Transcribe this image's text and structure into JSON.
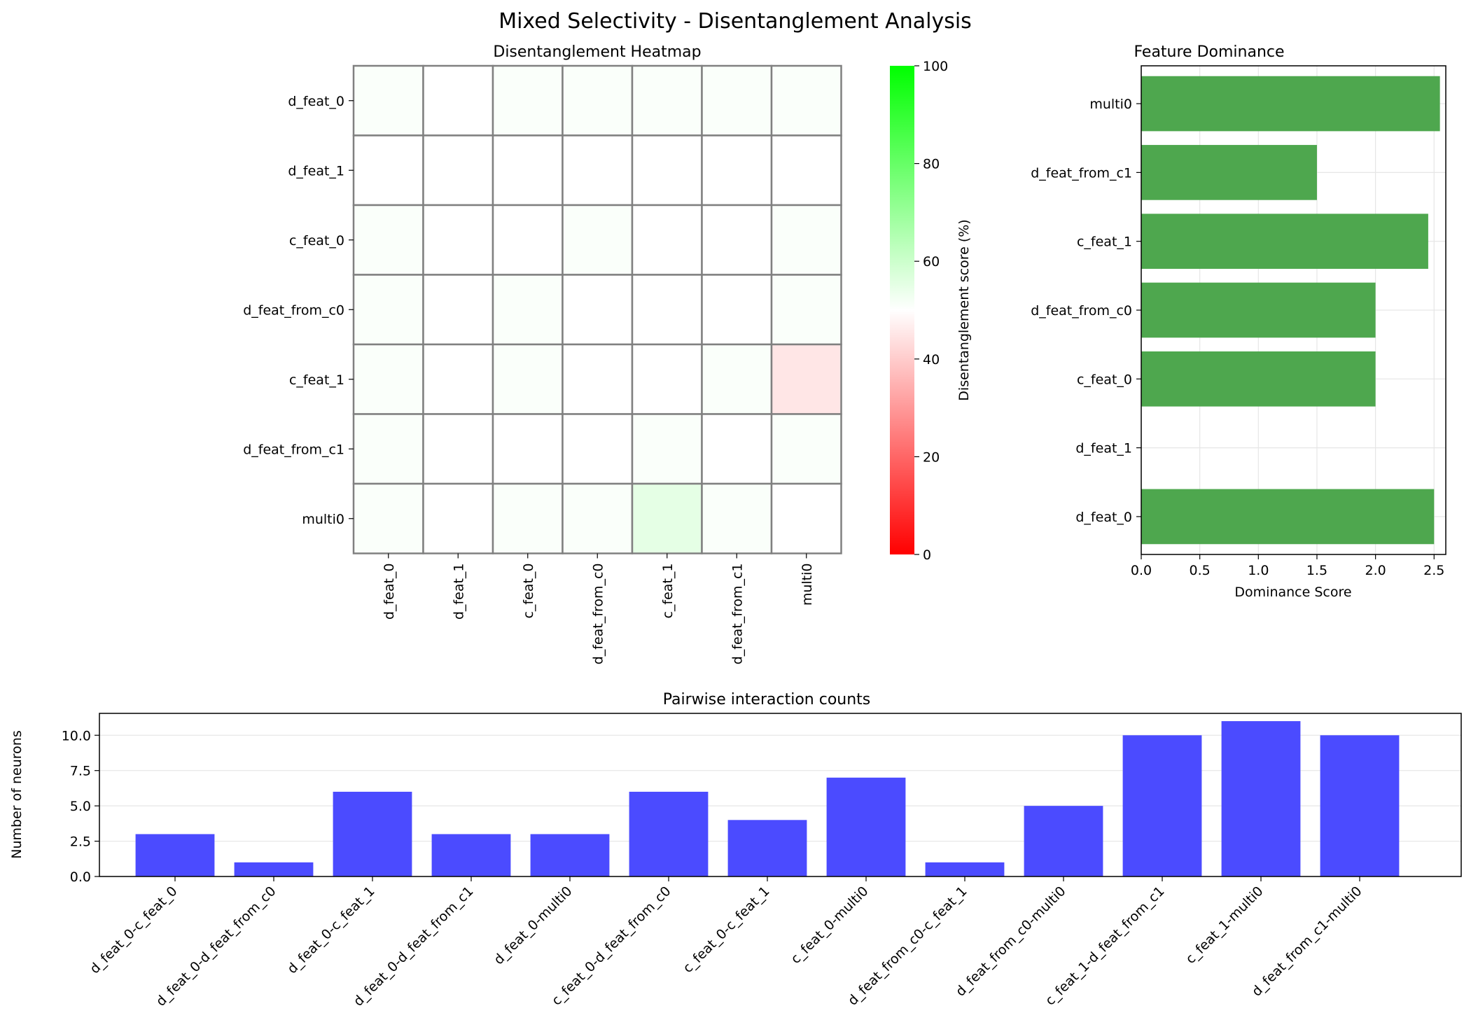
{
  "figure": {
    "title": "Mixed Selectivity - Disentanglement Analysis"
  },
  "colors": {
    "bar_green": "#4ea74e",
    "bar_blue": "#4b4bff",
    "grid": "#e6e6e6",
    "cell_border": "#808080",
    "cmap_low": "#ff0000",
    "cmap_mid": "#ffffff",
    "cmap_high": "#00ff00"
  },
  "chart_data": [
    {
      "type": "heatmap",
      "title": "Disentanglement Heatmap",
      "rows": [
        "d_feat_0",
        "d_feat_1",
        "c_feat_0",
        "d_feat_from_c0",
        "c_feat_1",
        "d_feat_from_c1",
        "multi0"
      ],
      "cols": [
        "d_feat_0",
        "d_feat_1",
        "c_feat_0",
        "d_feat_from_c0",
        "c_feat_1",
        "d_feat_from_c1",
        "multi0"
      ],
      "values": [
        [
          51,
          50,
          51,
          51,
          51,
          51,
          51
        ],
        [
          50,
          50,
          50,
          50,
          50,
          50,
          50
        ],
        [
          51,
          50,
          50,
          51,
          50,
          50,
          51
        ],
        [
          51,
          50,
          51,
          50,
          50,
          50,
          51
        ],
        [
          51,
          50,
          51,
          50,
          50,
          51,
          45
        ],
        [
          51,
          50,
          50,
          50,
          51,
          50,
          51
        ],
        [
          51,
          50,
          51,
          51,
          55,
          51,
          50
        ]
      ],
      "colorbar": {
        "label": "Disentanglement score (%)",
        "range": [
          0,
          100
        ],
        "ticks": [
          0,
          20,
          40,
          60,
          80,
          100
        ]
      }
    },
    {
      "type": "bar",
      "orientation": "horizontal",
      "title": "Feature Dominance",
      "categories": [
        "d_feat_0",
        "d_feat_1",
        "c_feat_0",
        "d_feat_from_c0",
        "c_feat_1",
        "d_feat_from_c1",
        "multi0"
      ],
      "values": [
        2.5,
        0,
        2.0,
        2.0,
        2.45,
        1.5,
        2.55
      ],
      "xlabel": "Dominance Score",
      "xlim": [
        0,
        2.6
      ],
      "xticks": [
        "0.0",
        "0.5",
        "1.0",
        "1.5",
        "2.0",
        "2.5"
      ],
      "grid": true
    },
    {
      "type": "bar",
      "title": "Pairwise interaction counts",
      "categories": [
        "d_feat_0-c_feat_0",
        "d_feat_0-d_feat_from_c0",
        "d_feat_0-c_feat_1",
        "d_feat_0-d_feat_from_c1",
        "d_feat_0-multi0",
        "c_feat_0-d_feat_from_c0",
        "c_feat_0-c_feat_1",
        "c_feat_0-multi0",
        "d_feat_from_c0-c_feat_1",
        "d_feat_from_c0-multi0",
        "c_feat_1-d_feat_from_c1",
        "c_feat_1-multi0",
        "d_feat_from_c1-multi0"
      ],
      "values": [
        3,
        1,
        6,
        3,
        3,
        6,
        4,
        7,
        1,
        5,
        10,
        11,
        10
      ],
      "ylabel": "Number of neurons",
      "ylim": [
        0,
        11.55
      ],
      "yticks": [
        "0.0",
        "2.5",
        "5.0",
        "7.5",
        "10.0"
      ],
      "grid": true
    }
  ]
}
